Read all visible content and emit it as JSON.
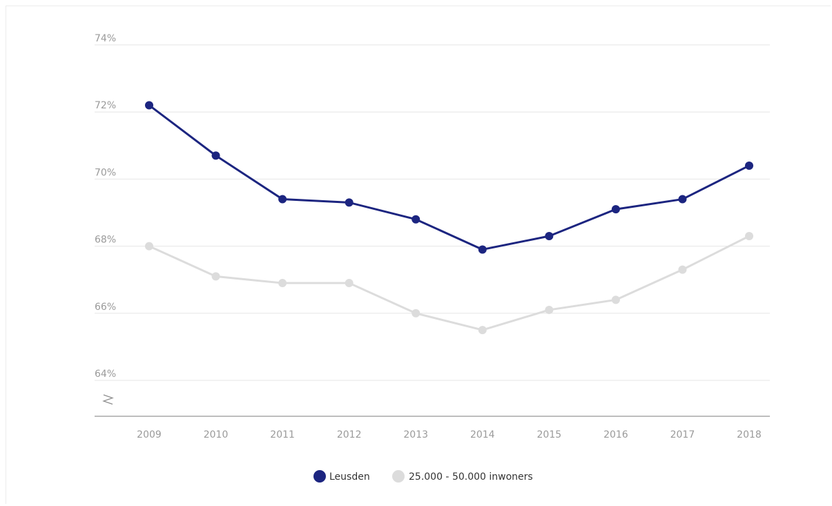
{
  "chart_data": {
    "type": "line",
    "categories": [
      "2009",
      "2010",
      "2011",
      "2012",
      "2013",
      "2014",
      "2015",
      "2016",
      "2017",
      "2018"
    ],
    "y_ticks": [
      "64%",
      "66%",
      "68%",
      "70%",
      "72%",
      "74%"
    ],
    "ylim": [
      64,
      74
    ],
    "grid": "horizontal",
    "axis_break": true,
    "legend_position": "bottom-center",
    "series": [
      {
        "name": "Leusden",
        "color": "#1c2580",
        "values": [
          72.2,
          70.7,
          69.4,
          69.3,
          68.8,
          67.9,
          68.3,
          69.1,
          69.4,
          70.4
        ]
      },
      {
        "name": "25.000 - 50.000 inwoners",
        "color": "#dcdcdc",
        "values": [
          68.0,
          67.1,
          66.9,
          66.9,
          66.0,
          65.5,
          66.1,
          66.4,
          67.3,
          68.3
        ]
      }
    ]
  }
}
